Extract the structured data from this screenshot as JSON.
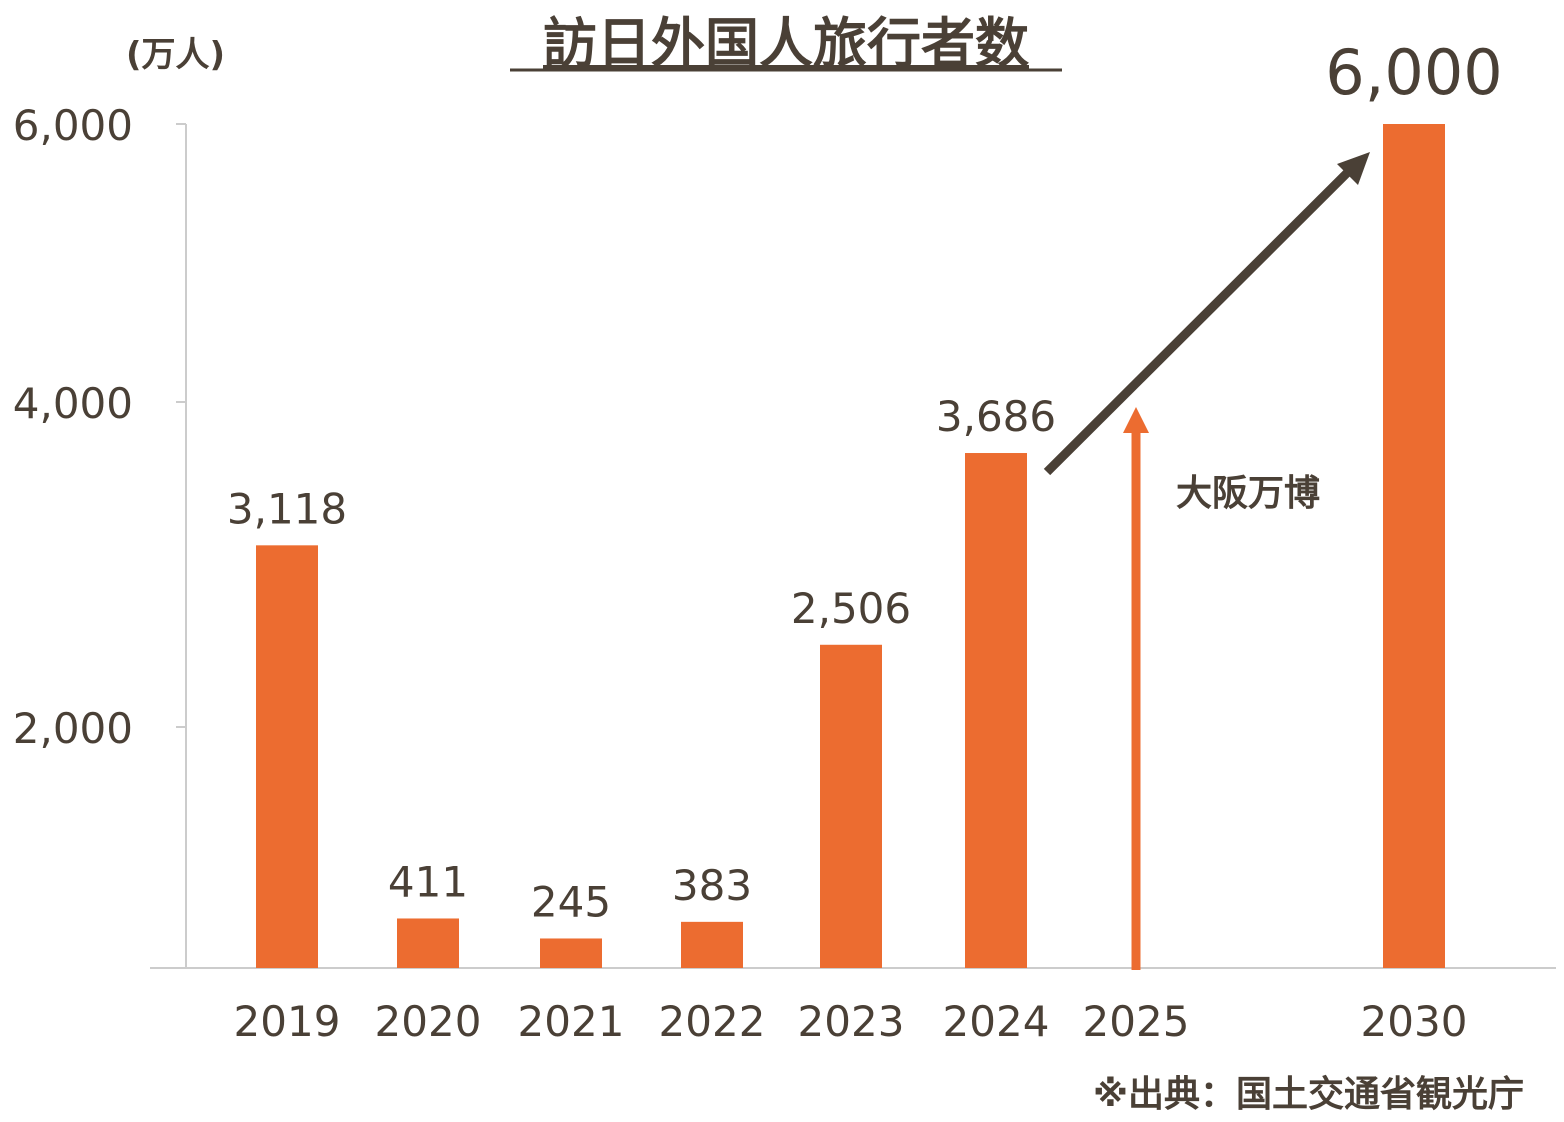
{
  "chart_data": {
    "type": "bar",
    "title": "訪日外国人旅行者数",
    "ylabel": "(万人)",
    "xlabel": "",
    "ylim": [
      0,
      6000
    ],
    "yticks": [
      2000,
      4000,
      6000
    ],
    "ytick_labels": [
      "2,000",
      "4,000",
      "6,000"
    ],
    "categories": [
      "2019",
      "2020",
      "2021",
      "2022",
      "2023",
      "2024",
      "2025",
      "2030"
    ],
    "values": [
      3118,
      411,
      245,
      383,
      2506,
      3686,
      null,
      6000
    ],
    "value_labels": [
      "3,118",
      "411",
      "245",
      "383",
      "2,506",
      "3,686",
      "",
      "6,000"
    ],
    "annotations": {
      "expo_label": "大阪万博",
      "source": "※出典：国土交通省観光庁"
    },
    "grid": false,
    "legend": "none"
  },
  "colors": {
    "bar": "#ec6c30",
    "text": "#4a4036",
    "axis": "#cccccc"
  }
}
